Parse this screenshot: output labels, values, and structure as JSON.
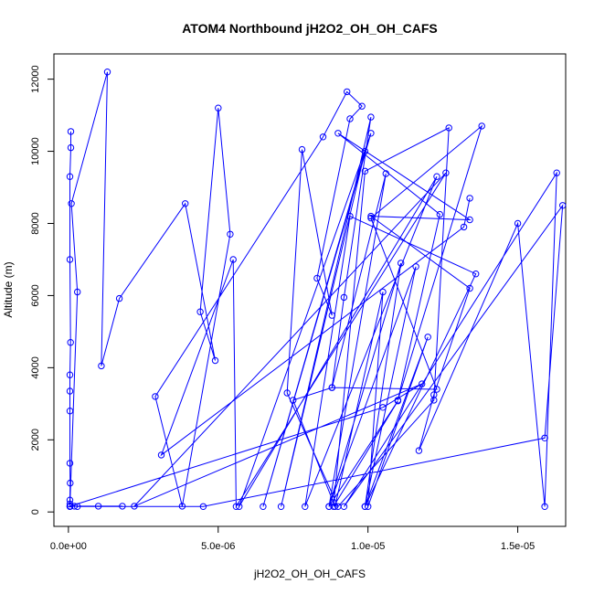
{
  "chart_data": {
    "type": "line",
    "title": "ATOM4 Northbound jH2O2_OH_OH_CAFS",
    "xlabel": "jH2O2_OH_OH_CAFS",
    "ylabel": "Altitude (m)",
    "xlim": [
      -4.84e-07,
      1.66e-05
    ],
    "ylim": [
      -400,
      12700
    ],
    "x_ticks": [
      0,
      5e-06,
      1e-05,
      1.5e-05
    ],
    "x_tick_labels": [
      "0.0e+00",
      "5.0e-06",
      "1.0e-05",
      "1.5e-05"
    ],
    "y_ticks": [
      0,
      2000,
      4000,
      6000,
      8000,
      10000,
      12000
    ],
    "y_tick_labels": [
      "0",
      "2000",
      "4000",
      "6000",
      "8000",
      "10000",
      "12000"
    ],
    "grid": false,
    "series_color": "#0000ff",
    "marker": "open-circle",
    "series": [
      {
        "x": [
          8e-08,
          8e-08,
          5e-08,
          5e-08,
          7e-08,
          5e-08,
          5e-08,
          5e-08,
          5e-08,
          6e-08,
          5e-08,
          5e-08,
          5e-08,
          5e-08,
          3e-07,
          1e-07,
          1.3e-06,
          1.1e-06,
          1.7e-06,
          3.9e-06,
          4.9e-06,
          4.4e-06,
          5e-06,
          5.4e-06,
          3.8e-06,
          2.9e-06,
          8.5e-06,
          9.3e-06,
          9.8e-06,
          9.4e-06,
          8.3e-06,
          8.8e-06,
          7.8e-06,
          7.3e-06,
          9e-06,
          1.22e-05,
          1.27e-05,
          9.9e-06,
          8.85e-06,
          1.1e-05,
          8.7e-06,
          1.06e-05,
          8.8e-06,
          9.2e-06,
          1.01e-05,
          7.1e-06,
          9.9e-06,
          6.5e-06,
          1.01e-05,
          5.7e-06,
          1.23e-05,
          7.9e-06,
          9.4e-06,
          1.36e-05,
          9.9e-06,
          1.11e-05,
          8.7e-06,
          1.16e-05,
          9.9e-06,
          1.2e-05,
          1e-05,
          1.05e-05,
          8.9e-06,
          7.5e-06,
          8.8e-06,
          1.23e-05,
          1.01e-05,
          1.38e-05,
          1.1e-05,
          1.24e-05,
          9e-06,
          1.34e-05,
          1.01e-05,
          1.34e-05,
          1.22e-05,
          1.17e-05,
          1.5e-05,
          1.59e-05,
          1.63e-05,
          9.2e-06,
          1.65e-05,
          1.59e-05,
          4.5e-06,
          3e-07,
          2e-07,
          1.8e-06,
          1e-06,
          6e-08,
          1.05e-05,
          1.18e-05,
          2.2e-06,
          1.26e-05,
          5.6e-06,
          5.5e-06,
          3.1e-06,
          1.32e-05,
          1.34e-05
        ],
        "y": [
          10550,
          10100,
          9300,
          7000,
          4700,
          3800,
          3350,
          2800,
          1350,
          800,
          330,
          220,
          150,
          150,
          6100,
          8550,
          12200,
          4050,
          5920,
          8550,
          4200,
          5550,
          11200,
          7700,
          160,
          3200,
          10400,
          11650,
          11250,
          10900,
          6480,
          5450,
          10050,
          3300,
          150,
          3100,
          10650,
          9450,
          150,
          3080,
          150,
          9380,
          3450,
          5950,
          10950,
          150,
          10000,
          150,
          10500,
          150,
          9300,
          150,
          8200,
          6600,
          150,
          6900,
          150,
          6800,
          150,
          4850,
          150,
          6100,
          150,
          3100,
          3450,
          3400,
          8150,
          10700,
          3100,
          8250,
          10500,
          8100,
          8200,
          6200,
          3250,
          1700,
          8000,
          150,
          9400,
          150,
          8500,
          2050,
          150,
          150,
          160,
          160,
          160,
          160,
          2900,
          3550,
          160,
          9400,
          150,
          7000,
          1580,
          7900,
          8700
        ]
      }
    ]
  }
}
